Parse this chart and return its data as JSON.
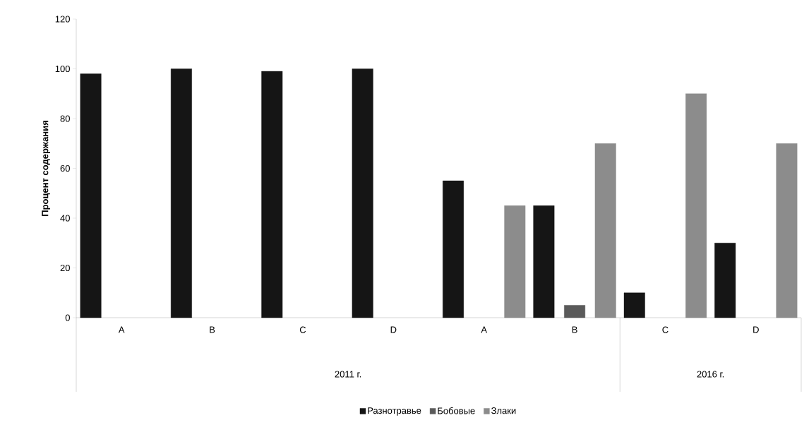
{
  "chart_data": {
    "type": "bar",
    "ylabel": "**Процент  содержания**",
    "categories": [
      "A",
      "B",
      "C",
      "D",
      "A",
      "B",
      "C",
      "D"
    ],
    "series": [
      {
        "name": "Разнотравье",
        "color": "#151515",
        "values": [
          98,
          100,
          99,
          100,
          55,
          45,
          10,
          30
        ]
      },
      {
        "name": "Бобовые",
        "color": "#5a5a5a",
        "values": [
          null,
          null,
          null,
          null,
          null,
          5,
          null,
          null
        ]
      },
      {
        "name": "Злаки",
        "color": "#8c8c8c",
        "values": [
          null,
          null,
          null,
          null,
          45,
          70,
          90,
          70
        ]
      }
    ],
    "ylim": [
      0,
      120
    ],
    "yticks": [
      0,
      20,
      40,
      60,
      80,
      100,
      120
    ],
    "annotations": [
      "2011 г.",
      "2016 г."
    ],
    "grid": false,
    "legend": "bottom"
  }
}
